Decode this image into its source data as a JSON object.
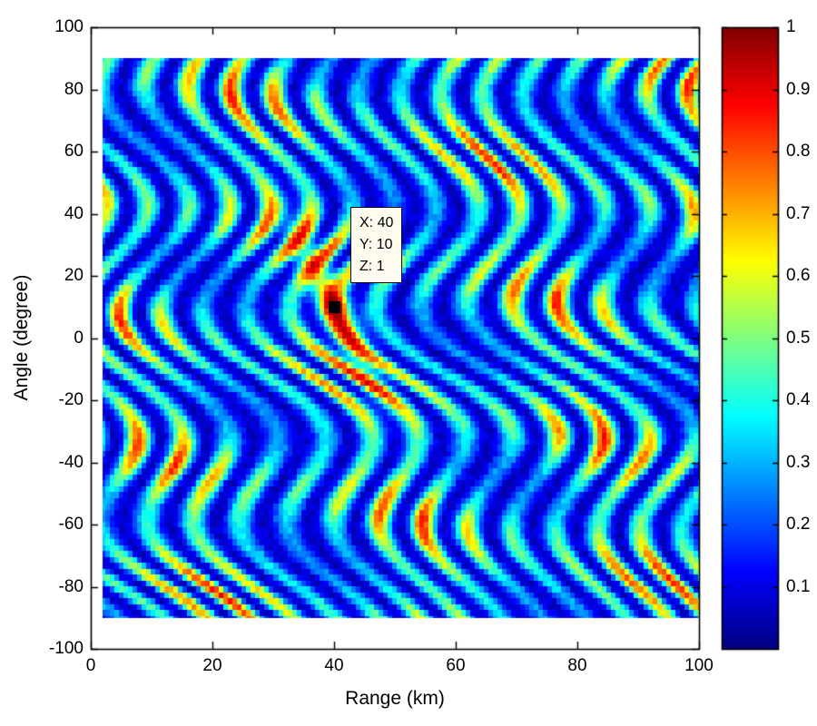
{
  "figure": {
    "background": "#ffffff"
  },
  "chart_data": {
    "type": "heatmap",
    "title": "",
    "xlabel": "Range (km)",
    "ylabel": "Angle (degree)",
    "xlim": [
      0,
      100
    ],
    "ylim": [
      -100,
      100
    ],
    "x_ticks": [
      0,
      20,
      40,
      60,
      80,
      100
    ],
    "y_ticks": [
      -100,
      -80,
      -60,
      -40,
      -20,
      0,
      20,
      40,
      60,
      80,
      100
    ],
    "data_extent": {
      "x": [
        2,
        100
      ],
      "y": [
        -90,
        90
      ]
    },
    "grid": false,
    "colormap": "jet",
    "colorbar": {
      "position": "right",
      "range": [
        0,
        1
      ],
      "ticks": [
        1,
        0.9,
        0.8,
        0.7,
        0.6,
        0.5,
        0.4,
        0.3,
        0.2,
        0.1
      ]
    },
    "peak": {
      "x": 40,
      "y": 10,
      "z": 1
    },
    "marker": {
      "shape": "square",
      "color": "#000000"
    },
    "datatip": {
      "lines": [
        "X: 40",
        "Y: 10",
        "Z: 1"
      ],
      "background": "#fdfcee",
      "border": "#000000"
    },
    "value_colors": {
      "low": "#00008f",
      "mid": "#00ffff",
      "high": "#7f0000"
    }
  }
}
